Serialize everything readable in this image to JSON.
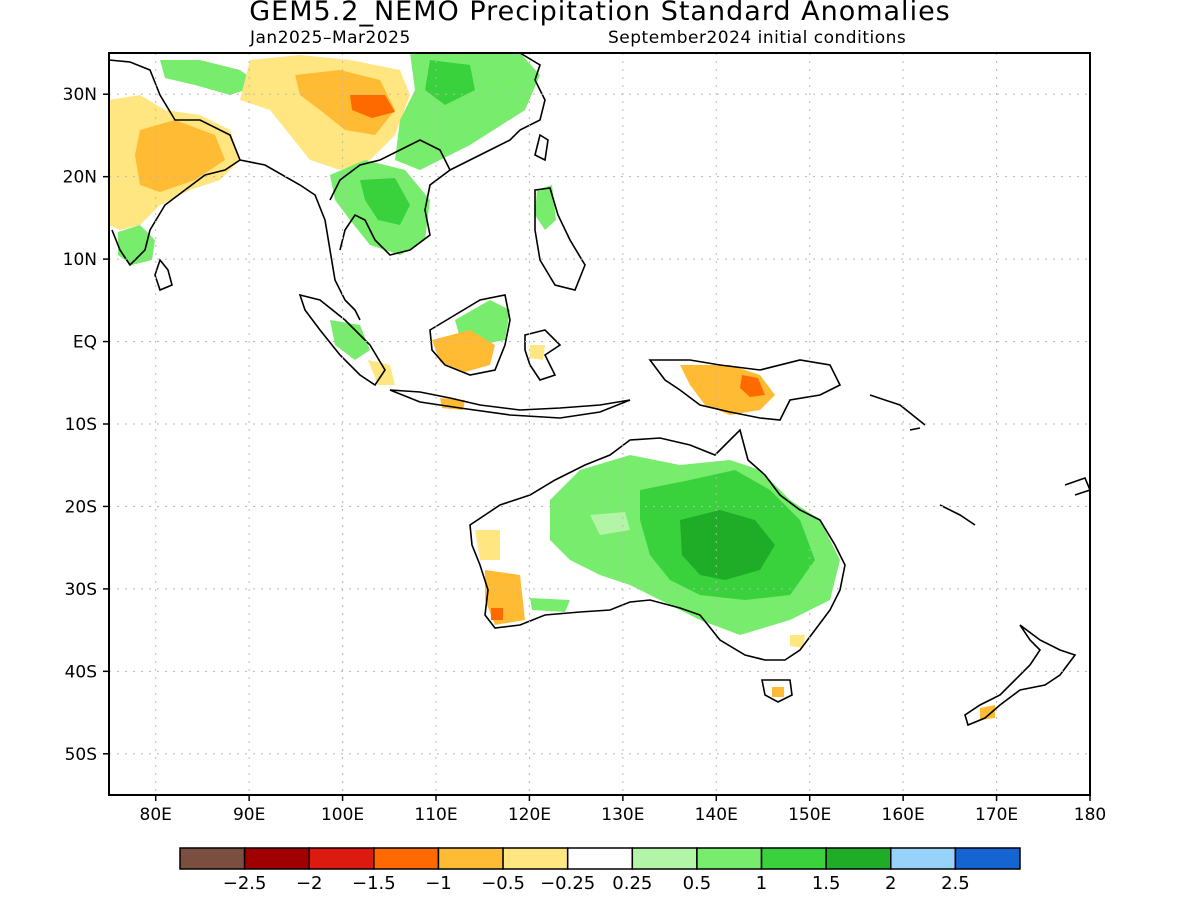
{
  "title": "GEM5.2_NEMO Precipitation Standard Anomalies",
  "subtitle_left": "Jan2025–Mar2025",
  "subtitle_right": "September2024 initial conditions",
  "map": {
    "lon_range": [
      75,
      180
    ],
    "lat_range": [
      -55,
      35
    ],
    "lat_ticks": [
      {
        "value": 30,
        "label": "30N"
      },
      {
        "value": 20,
        "label": "20N"
      },
      {
        "value": 10,
        "label": "10N"
      },
      {
        "value": 0,
        "label": "EQ"
      },
      {
        "value": -10,
        "label": "10S"
      },
      {
        "value": -20,
        "label": "20S"
      },
      {
        "value": -30,
        "label": "30S"
      },
      {
        "value": -40,
        "label": "40S"
      },
      {
        "value": -50,
        "label": "50S"
      }
    ],
    "lon_ticks": [
      {
        "value": 80,
        "label": "80E"
      },
      {
        "value": 90,
        "label": "90E"
      },
      {
        "value": 100,
        "label": "100E"
      },
      {
        "value": 110,
        "label": "110E"
      },
      {
        "value": 120,
        "label": "120E"
      },
      {
        "value": 130,
        "label": "130E"
      },
      {
        "value": 140,
        "label": "140E"
      },
      {
        "value": 150,
        "label": "150E"
      },
      {
        "value": 160,
        "label": "160E"
      },
      {
        "value": 170,
        "label": "170E"
      },
      {
        "value": 180,
        "label": "180"
      }
    ],
    "grid": true
  },
  "colorbar": {
    "colors": [
      "#7a4e40",
      "#a00000",
      "#dd1a10",
      "#ff6a00",
      "#ffbb33",
      "#ffe680",
      "#ffffff",
      "#b3f5a6",
      "#78ec6c",
      "#39d23c",
      "#1fad28",
      "#96d2fa",
      "#1464d2"
    ],
    "labels": [
      "−2.5",
      "−2",
      "−1.5",
      "−1",
      "−0.5",
      "−0.25",
      "0.25",
      "0.5",
      "1",
      "1.5",
      "2",
      "2.5"
    ]
  }
}
